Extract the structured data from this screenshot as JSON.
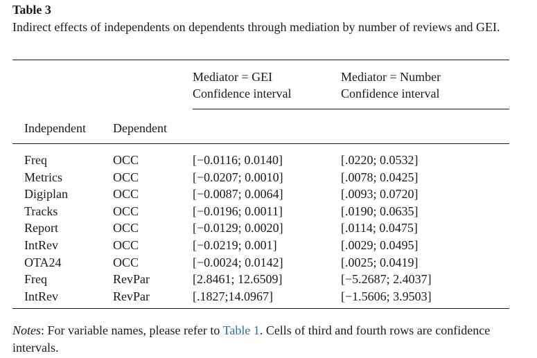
{
  "table": {
    "title": "Table 3",
    "caption": "Indirect effects of independents on dependents through mediation by number of reviews and GEI.",
    "headers": {
      "gei_mediator": "Mediator = GEI",
      "gei_ci": "Confidence interval",
      "num_mediator": "Mediator = Number",
      "num_ci": "Confidence interval",
      "independent": "Independent",
      "dependent": "Dependent"
    },
    "rows": [
      {
        "independent": "Freq",
        "dependent": "OCC",
        "gei": "[−0.0116; 0.0140]",
        "number": "[.0220; 0.0532]"
      },
      {
        "independent": "Metrics",
        "dependent": "OCC",
        "gei": "[−0.0207; 0.0010]",
        "number": "[.0078; 0.0425]"
      },
      {
        "independent": "Digiplan",
        "dependent": "OCC",
        "gei": "[−0.0087; 0.0064]",
        "number": "[.0093; 0.0720]"
      },
      {
        "independent": "Tracks",
        "dependent": "OCC",
        "gei": "[−0.0196; 0.0011]",
        "number": "[.0190; 0.0635]"
      },
      {
        "independent": "Report",
        "dependent": "OCC",
        "gei": "[−0.0129; 0.0020]",
        "number": "[.0114; 0.0475]"
      },
      {
        "independent": "IntRev",
        "dependent": "OCC",
        "gei": "[−0.0219; 0.001]",
        "number": "[.0029; 0.0495]"
      },
      {
        "independent": "OTA24",
        "dependent": "OCC",
        "gei": "[−0.0024; 0.0142]",
        "number": "[.0025; 0.0419]"
      },
      {
        "independent": "Freq",
        "dependent": "RevPar",
        "gei": "[2.8461; 12.6509]",
        "number": "[−5.2687; 2.4037]"
      },
      {
        "independent": "IntRev",
        "dependent": "RevPar",
        "gei": "[.1827;14.0967]",
        "number": "[−1.5606; 3.9503]"
      }
    ]
  },
  "notes": {
    "label": "Notes",
    "text_before": ": For variable names, please refer to ",
    "link_text": "Table 1",
    "text_after": ". Cells of third and fourth rows are confidence intervals."
  },
  "colors": {
    "text": "#1a1a1a",
    "link": "#2e6ea8"
  }
}
